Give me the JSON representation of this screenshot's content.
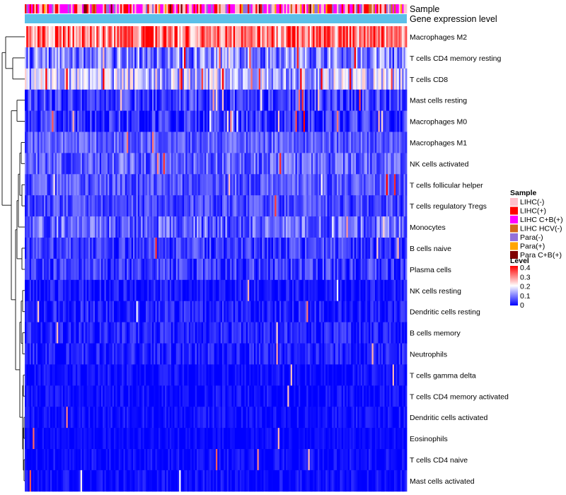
{
  "chart_data": {
    "type": "heatmap",
    "title": "",
    "annotation_rows": [
      "Sample",
      "Gene expression level"
    ],
    "rows": [
      {
        "label": "Macrophages M2",
        "mean": 0.3,
        "spread": 0.12,
        "spike": 0.05
      },
      {
        "label": "T cells CD4 memory resting",
        "mean": 0.09,
        "spread": 0.09,
        "spike": 0.04
      },
      {
        "label": "T cells CD8",
        "mean": 0.14,
        "spread": 0.1,
        "spike": 0.06
      },
      {
        "label": "Mast cells resting",
        "mean": 0.04,
        "spread": 0.06,
        "spike": 0.02
      },
      {
        "label": "Macrophages M0",
        "mean": 0.03,
        "spread": 0.06,
        "spike": 0.04
      },
      {
        "label": "Macrophages M1",
        "mean": 0.07,
        "spread": 0.05,
        "spike": 0.01
      },
      {
        "label": "NK cells activated",
        "mean": 0.07,
        "spread": 0.06,
        "spike": 0.01
      },
      {
        "label": "T cells follicular helper",
        "mean": 0.06,
        "spread": 0.05,
        "spike": 0.01
      },
      {
        "label": "T cells regulatory  Tregs",
        "mean": 0.05,
        "spread": 0.05,
        "spike": 0.01
      },
      {
        "label": "Monocytes",
        "mean": 0.07,
        "spread": 0.07,
        "spike": 0.02
      },
      {
        "label": "B cells naive",
        "mean": 0.04,
        "spread": 0.05,
        "spike": 0.01
      },
      {
        "label": "Plasma cells",
        "mean": 0.04,
        "spread": 0.05,
        "spike": 0.01
      },
      {
        "label": "NK cells resting",
        "mean": 0.01,
        "spread": 0.04,
        "spike": 0.01
      },
      {
        "label": "Dendritic cells resting",
        "mean": 0.02,
        "spread": 0.04,
        "spike": 0.01
      },
      {
        "label": "B cells memory",
        "mean": 0.02,
        "spread": 0.04,
        "spike": 0.01
      },
      {
        "label": "Neutrophils",
        "mean": 0.02,
        "spread": 0.04,
        "spike": 0.01
      },
      {
        "label": "T cells gamma delta",
        "mean": 0.005,
        "spread": 0.03,
        "spike": 0.01
      },
      {
        "label": "T cells CD4 memory activated",
        "mean": 0.005,
        "spread": 0.03,
        "spike": 0.01
      },
      {
        "label": "Dendritic cells activated",
        "mean": 0.005,
        "spread": 0.03,
        "spike": 0.01
      },
      {
        "label": "Eosinophils",
        "mean": 0.003,
        "spread": 0.02,
        "spike": 0.01
      },
      {
        "label": "T cells CD4 naive",
        "mean": 0.004,
        "spread": 0.03,
        "spike": 0.01
      },
      {
        "label": "Mast cells activated",
        "mean": 0.004,
        "spread": 0.03,
        "spike": 0.01
      }
    ],
    "n_columns": 240,
    "value_range": [
      0,
      0.4
    ],
    "colorscale": [
      "#0000ff",
      "#ffffff",
      "#ff0000"
    ],
    "gene_expression_color": "#5bbfe8",
    "legend_sample": {
      "title": "Sample",
      "entries": [
        {
          "label": "LIHC(-)",
          "color": "#ffc0cb"
        },
        {
          "label": "LIHC(+)",
          "color": "#ff0000"
        },
        {
          "label": "LIHC C+B(+)",
          "color": "#ff00ff"
        },
        {
          "label": "LIHC HCV(-)",
          "color": "#d2691e"
        },
        {
          "label": "Para(-)",
          "color": "#9370db"
        },
        {
          "label": "Para(+)",
          "color": "#ffa500"
        },
        {
          "label": "Para C+B(+)",
          "color": "#800000"
        }
      ]
    },
    "legend_level": {
      "title": "Level",
      "ticks": [
        "0.4",
        "0.3",
        "0.2",
        "0.1",
        "0"
      ]
    },
    "legend_position": "right",
    "dendrogram": "rows"
  }
}
